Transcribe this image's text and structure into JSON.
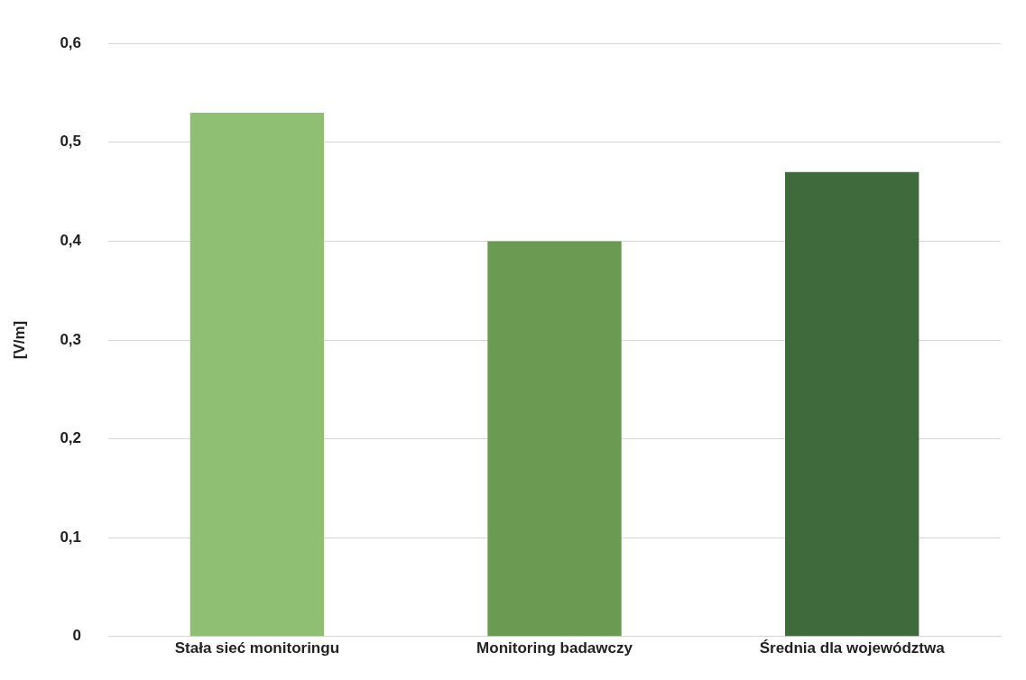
{
  "chart_data": {
    "type": "bar",
    "ylabel": "[V/m]",
    "categories": [
      "Stała sieć monitoringu",
      "Monitoring badawczy",
      "Średnia dla województwa"
    ],
    "values": [
      0.53,
      0.4,
      0.47
    ],
    "colors": [
      "#8fbf72",
      "#6b9a52",
      "#3f6a3c"
    ],
    "ylim": [
      0,
      0.6
    ],
    "yticks": [
      0,
      {
        "value": 0.1,
        "label": "0,1"
      },
      {
        "value": 0.2,
        "label": "0,2"
      },
      {
        "value": 0.3,
        "label": "0,3"
      },
      {
        "value": 0.4,
        "label": "0,4"
      },
      {
        "value": 0.5,
        "label": "0,5"
      },
      {
        "value": 0.6,
        "label": "0,6"
      }
    ],
    "grid": "y",
    "legend": false
  }
}
